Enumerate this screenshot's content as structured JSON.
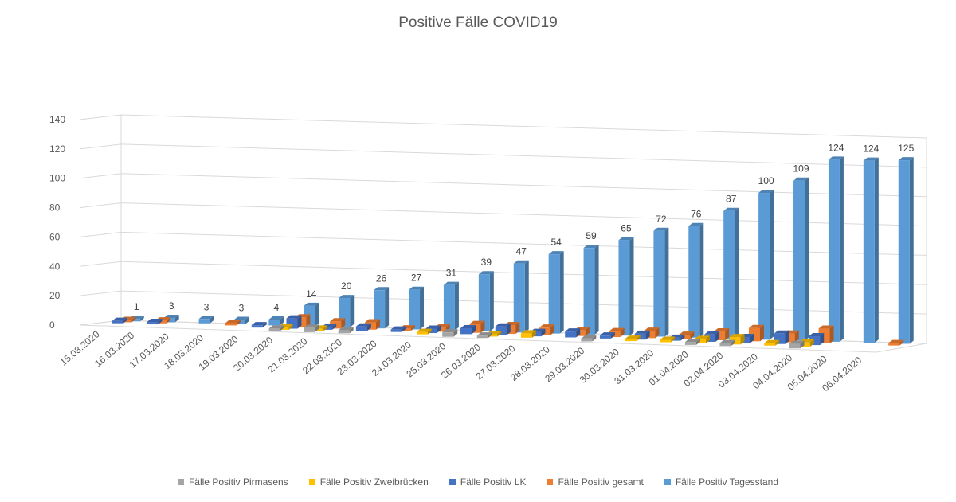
{
  "chart_data": {
    "type": "bar",
    "title": "Positive Fälle COVID19",
    "categories": [
      "15.03.2020",
      "16.03.2020",
      "17.03.2020",
      "18.03.2020",
      "19.03.2020",
      "20.03.2020",
      "21.03.2020",
      "22.03.2020",
      "23.03.2020",
      "24.03.2020",
      "25.03.2020",
      "26.03.2020",
      "27.03.2020",
      "28.03.2020",
      "29.03.2020",
      "30.03.2020",
      "31.03.2020",
      "01.04.2020",
      "02.04.2020",
      "03.04.2020",
      "04.04.2020",
      "05.04.2020",
      "06.04.2020"
    ],
    "yticks": [
      "0",
      "20",
      "40",
      "60",
      "80",
      "100",
      "120",
      "140"
    ],
    "ylim": [
      0,
      140
    ],
    "grid": true,
    "legend_position": "bottom",
    "series": [
      {
        "name": "Fälle Positiv Pirmasens",
        "color": "#a5a5a5",
        "values": [
          0,
          0,
          0,
          0,
          0,
          1,
          3,
          2,
          0,
          0,
          3,
          1,
          0,
          0,
          2,
          0,
          0,
          2,
          2,
          0,
          3,
          0,
          0
        ]
      },
      {
        "name": "Fälle Positiv Zweibrücken",
        "color": "#ffc000",
        "values": [
          0,
          0,
          0,
          0,
          0,
          1,
          1,
          0,
          0,
          1,
          0,
          1,
          3,
          0,
          0,
          1,
          1,
          3,
          5,
          1,
          3,
          0,
          0
        ]
      },
      {
        "name": "Fälle Positiv LK",
        "color": "#4472c4",
        "values": [
          1,
          1,
          0,
          0,
          1,
          7,
          1,
          3,
          1,
          3,
          4,
          6,
          3,
          4,
          2,
          4,
          2,
          5,
          4,
          7,
          6,
          0,
          0
        ]
      },
      {
        "name": "Fälle Positiv gesamt",
        "color": "#ed7d31",
        "values": [
          1,
          2,
          0,
          1,
          0,
          7,
          5,
          5,
          1,
          3,
          6,
          6,
          5,
          4,
          4,
          5,
          3,
          6,
          9,
          6,
          10,
          0,
          1
        ]
      },
      {
        "name": "Fälle Positiv Tagesstand",
        "color": "#5b9bd5",
        "values": [
          1,
          3,
          3,
          3,
          4,
          14,
          20,
          26,
          27,
          31,
          39,
          47,
          54,
          59,
          65,
          72,
          76,
          87,
          100,
          109,
          124,
          124,
          125
        ]
      }
    ],
    "data_labels": {
      "series": "Fälle Positiv Tagesstand",
      "values": [
        "1",
        "3",
        "3",
        "3",
        "4",
        "14",
        "20",
        "26",
        "27",
        "31",
        "39",
        "47",
        "54",
        "59",
        "65",
        "72",
        "76",
        "87",
        "100",
        "109",
        "124",
        "124",
        "125"
      ]
    }
  }
}
